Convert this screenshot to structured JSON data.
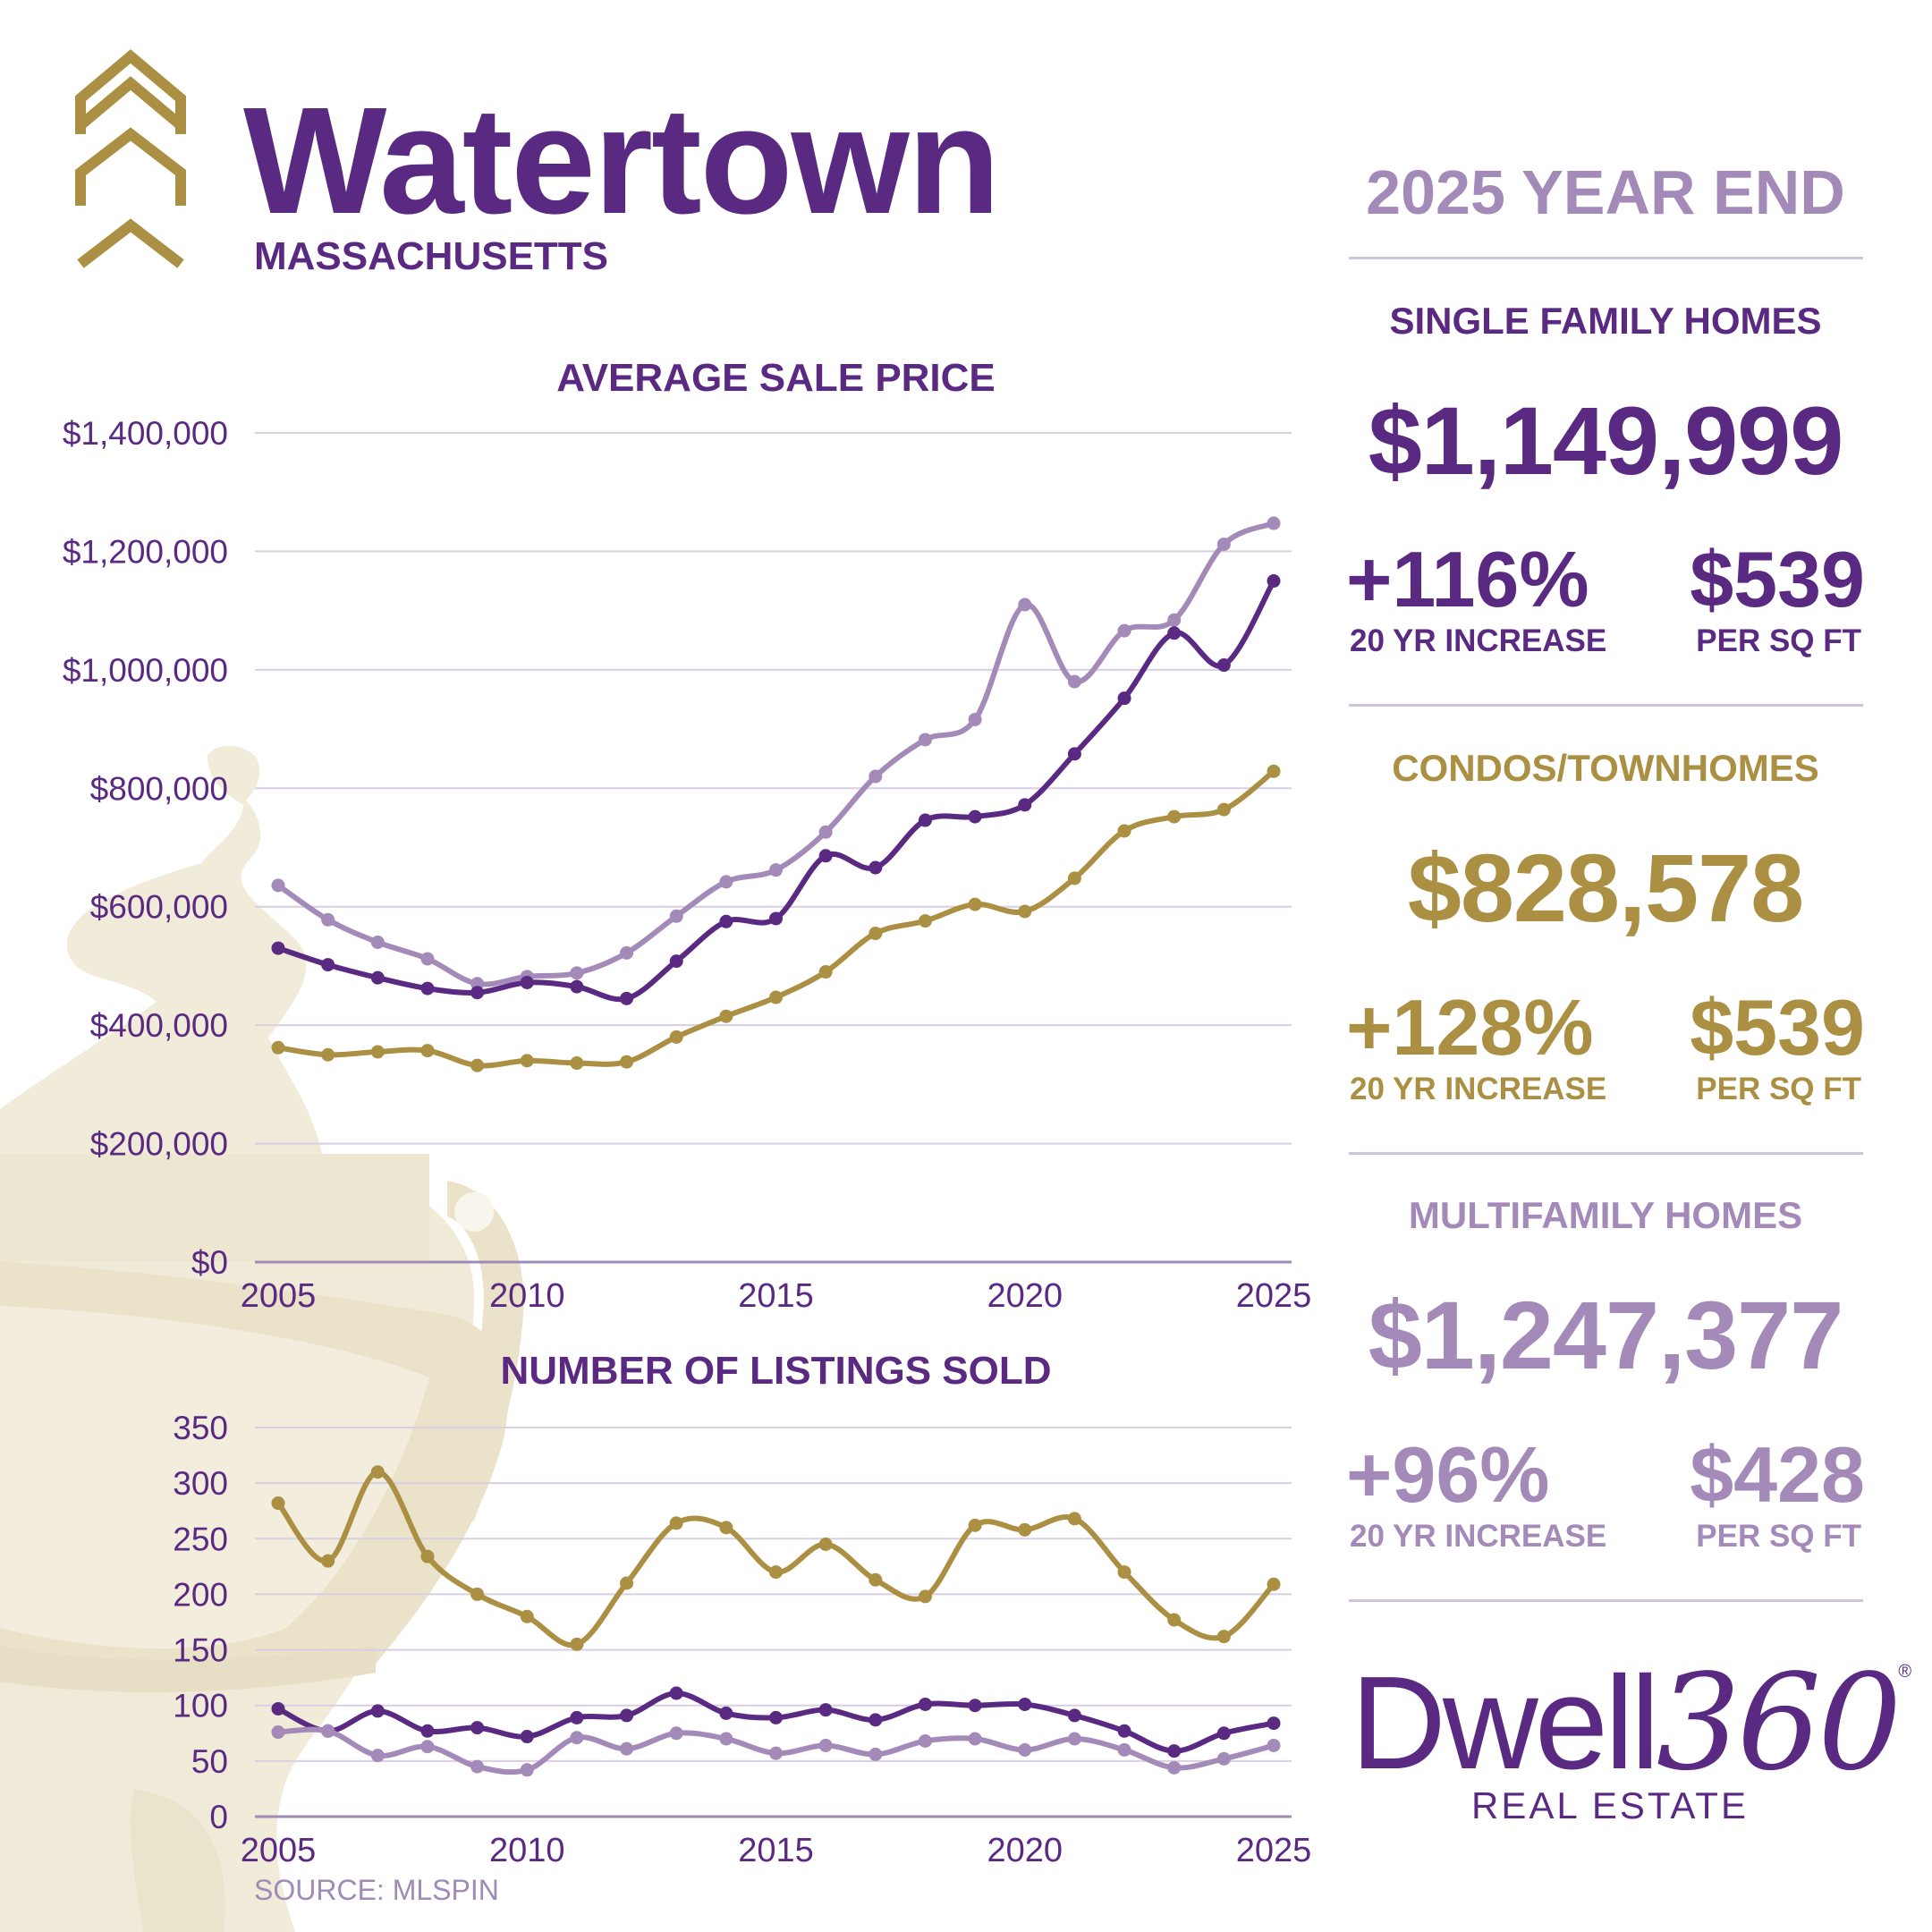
{
  "header": {
    "city": "Watertown",
    "state": "MASSACHUSETTS",
    "logo_icon": "triple-chevron-up-icon",
    "background_art": "door-knocker-illustration"
  },
  "colors": {
    "single_family": "#5a2a82",
    "condo": "#ab8f42",
    "multifamily": "#a48ab8",
    "gridline": "#d8cfe2"
  },
  "report_title": "2025 YEAR END",
  "sections": [
    {
      "title": "SINGLE FAMILY HOMES",
      "price": "$1,149,999",
      "increase": "+116%",
      "increase_label": "20 YR INCREASE",
      "per_sqft": "$539",
      "per_sqft_label": "PER SQ FT",
      "color": "#5a2a82"
    },
    {
      "title": "CONDOS/TOWNHOMES",
      "price": "$828,578",
      "increase": "+128%",
      "increase_label": "20 YR INCREASE",
      "per_sqft": "$539",
      "per_sqft_label": "PER SQ FT",
      "color": "#ab8f42"
    },
    {
      "title": "MULTIFAMILY HOMES",
      "price": "$1,247,377",
      "increase": "+96%",
      "increase_label": "20 YR INCREASE",
      "per_sqft": "$428",
      "per_sqft_label": "PER SQ FT",
      "color": "#a48ab8"
    }
  ],
  "brand": {
    "name": "Dwell",
    "number": "360",
    "registered": "®",
    "tagline": "REAL ESTATE"
  },
  "source": "SOURCE: MLSPIN",
  "chart_data": [
    {
      "type": "line",
      "title": "AVERAGE SALE PRICE",
      "x": [
        2005,
        2006,
        2007,
        2008,
        2009,
        2010,
        2011,
        2012,
        2013,
        2014,
        2015,
        2016,
        2017,
        2018,
        2019,
        2020,
        2021,
        2022,
        2023,
        2024,
        2025
      ],
      "xticks": [
        "2005",
        "2010",
        "2015",
        "2020",
        "2025"
      ],
      "yticks": [
        "$0",
        "$200,000",
        "$400,000",
        "$600,000",
        "$800,000",
        "$1,000,000",
        "$1,200,000",
        "$1,400,000"
      ],
      "ylim": [
        0,
        1400000
      ],
      "grid": true,
      "series": [
        {
          "color_key": "multifamily",
          "values": [
            636000,
            578000,
            540000,
            512000,
            470000,
            482000,
            488000,
            522000,
            584000,
            642000,
            662000,
            726000,
            820000,
            882000,
            916000,
            1110000,
            980000,
            1066000,
            1084000,
            1212000,
            1247377
          ]
        },
        {
          "color_key": "single_family",
          "values": [
            530000,
            502000,
            480000,
            462000,
            455000,
            472000,
            465000,
            445000,
            508000,
            575000,
            580000,
            686000,
            666000,
            746000,
            752000,
            772000,
            858000,
            952000,
            1062000,
            1008000,
            1149999
          ]
        },
        {
          "color_key": "condo",
          "values": [
            362000,
            350000,
            355000,
            357000,
            332000,
            340000,
            336000,
            338000,
            380000,
            415000,
            447000,
            490000,
            555000,
            576000,
            604000,
            592000,
            648000,
            728000,
            752000,
            764000,
            828578
          ]
        }
      ]
    },
    {
      "type": "line",
      "title": "NUMBER OF LISTINGS SOLD",
      "x": [
        2005,
        2006,
        2007,
        2008,
        2009,
        2010,
        2011,
        2012,
        2013,
        2014,
        2015,
        2016,
        2017,
        2018,
        2019,
        2020,
        2021,
        2022,
        2023,
        2024,
        2025
      ],
      "xticks": [
        "2005",
        "2010",
        "2015",
        "2020",
        "2025"
      ],
      "yticks": [
        "0",
        "50",
        "100",
        "150",
        "200",
        "250",
        "300",
        "350"
      ],
      "ylim": [
        0,
        350
      ],
      "grid": true,
      "series": [
        {
          "color_key": "condo",
          "values": [
            282,
            230,
            310,
            234,
            200,
            180,
            155,
            210,
            264,
            260,
            220,
            245,
            213,
            198,
            262,
            258,
            268,
            220,
            177,
            162,
            209
          ]
        },
        {
          "color_key": "single_family",
          "values": [
            97,
            77,
            95,
            77,
            80,
            72,
            89,
            91,
            111,
            93,
            89,
            96,
            87,
            101,
            100,
            101,
            91,
            77,
            59,
            75,
            84
          ]
        },
        {
          "color_key": "multifamily",
          "values": [
            76,
            77,
            55,
            63,
            45,
            42,
            71,
            61,
            75,
            70,
            57,
            64,
            56,
            68,
            70,
            60,
            70,
            60,
            44,
            52,
            64
          ]
        }
      ]
    }
  ]
}
